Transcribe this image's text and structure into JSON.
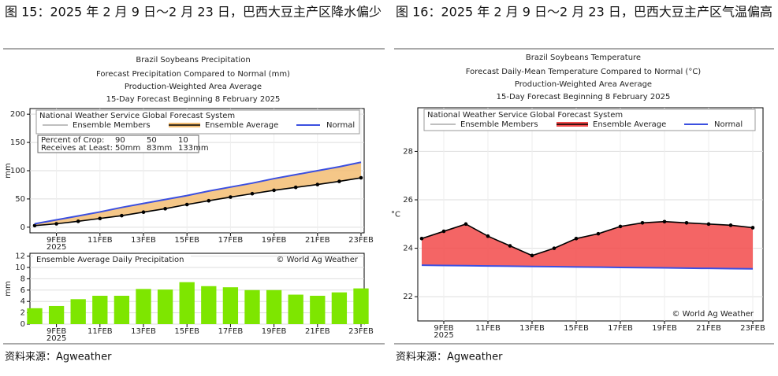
{
  "captions": [
    "图 15：2025 年 2 月 9 日～2 月 23 日，巴西大豆主产区降水偏少",
    "图 16：2025 年 2 月 9 日～2 月 23 日，巴西大豆主产区气温偏高"
  ],
  "sources": [
    "资料来源：Agweather",
    "资料来源：Agweather"
  ],
  "chart_data": [
    {
      "type": "line",
      "title": "Brazil Soybeans Precipitation",
      "subtitles": [
        "Forecast Precipitation Compared to Normal (mm)",
        "Production-Weighted Area Average",
        "15-Day Forecast Beginning 8 February 2025"
      ],
      "legend_title": "National Weather Service Global Forecast System",
      "members_label": "Ensemble Members",
      "fill_color": "#f3bd73",
      "categories": [
        null,
        "9FEB",
        null,
        "11FEB",
        null,
        "13FEB",
        null,
        "15FEB",
        null,
        "17FEB",
        null,
        "19FEB",
        null,
        "21FEB",
        null,
        "23FEB"
      ],
      "x_sublabel": "2025",
      "series": [
        {
          "name": "Ensemble Average",
          "color": "#000000",
          "values": [
            2.8,
            6.0,
            10.4,
            15.4,
            20.4,
            26.6,
            32.7,
            40.1,
            46.8,
            53.3,
            59.3,
            65.3,
            70.5,
            75.5,
            81.1,
            87.4
          ]
        },
        {
          "name": "Normal",
          "color": "#3b4fe0",
          "values": [
            6,
            13,
            20,
            27,
            35,
            42,
            49,
            56,
            64,
            71,
            78,
            86,
            93,
            100,
            107,
            115
          ]
        }
      ],
      "ylabel": "mm",
      "ylim": [
        -10,
        210
      ],
      "yticks": [
        0,
        50,
        100,
        150,
        200
      ],
      "grid": true,
      "table": [
        [
          "Percent of Crop:",
          "90",
          "50",
          "10"
        ],
        [
          "Receives at Least:",
          "50mm",
          "83mm",
          "133mm"
        ]
      ]
    },
    {
      "type": "bar",
      "title": "Ensemble Average Daily Precipitation",
      "credit": "© World Ag Weather",
      "color": "#7ee600",
      "categories": [
        null,
        "9FEB",
        null,
        "11FEB",
        null,
        "13FEB",
        null,
        "15FEB",
        null,
        "17FEB",
        null,
        "19FEB",
        null,
        "21FEB",
        null,
        "23FEB"
      ],
      "x_sublabel": "2025",
      "values": [
        2.8,
        3.2,
        4.4,
        5.0,
        5.0,
        6.2,
        6.1,
        7.4,
        6.7,
        6.5,
        6.0,
        6.0,
        5.2,
        5.0,
        5.6,
        6.3
      ],
      "ylabel": "mm",
      "ylim": [
        0,
        12.5
      ],
      "yticks": [
        0,
        2,
        4,
        6,
        8,
        10,
        12
      ],
      "grid": true
    },
    {
      "type": "line",
      "title": "Brazil Soybeans Temperature",
      "subtitles": [
        "Forecast Daily-Mean Temperature Compared to Normal (°C)",
        "Production-Weighted Area Average",
        "15-Day Forecast Beginning 8 February 2025"
      ],
      "legend_title": "National Weather Service Global Forecast System",
      "members_label": "Ensemble Members",
      "fill_color": "#f24a4a",
      "credit": "© World Ag Weather",
      "categories": [
        null,
        "9FEB",
        null,
        "11FEB",
        null,
        "13FEB",
        null,
        "15FEB",
        null,
        "17FEB",
        null,
        "19FEB",
        null,
        "21FEB",
        null,
        "23FEB"
      ],
      "x_sublabel": "2025",
      "series": [
        {
          "name": "Ensemble Average",
          "color": "#000000",
          "values": [
            24.4,
            24.7,
            25.0,
            24.5,
            24.1,
            23.7,
            24.0,
            24.4,
            24.6,
            24.9,
            25.05,
            25.1,
            25.05,
            25.0,
            24.95,
            24.85
          ]
        },
        {
          "name": "Normal",
          "color": "#3b4fe0",
          "values": [
            23.3,
            23.29,
            23.28,
            23.27,
            23.26,
            23.25,
            23.24,
            23.23,
            23.22,
            23.21,
            23.2,
            23.19,
            23.18,
            23.17,
            23.16,
            23.15
          ]
        }
      ],
      "ylabel": "°C",
      "ylim": [
        21,
        29.8
      ],
      "yticks": [
        22,
        24,
        26,
        28
      ],
      "grid": true
    }
  ]
}
